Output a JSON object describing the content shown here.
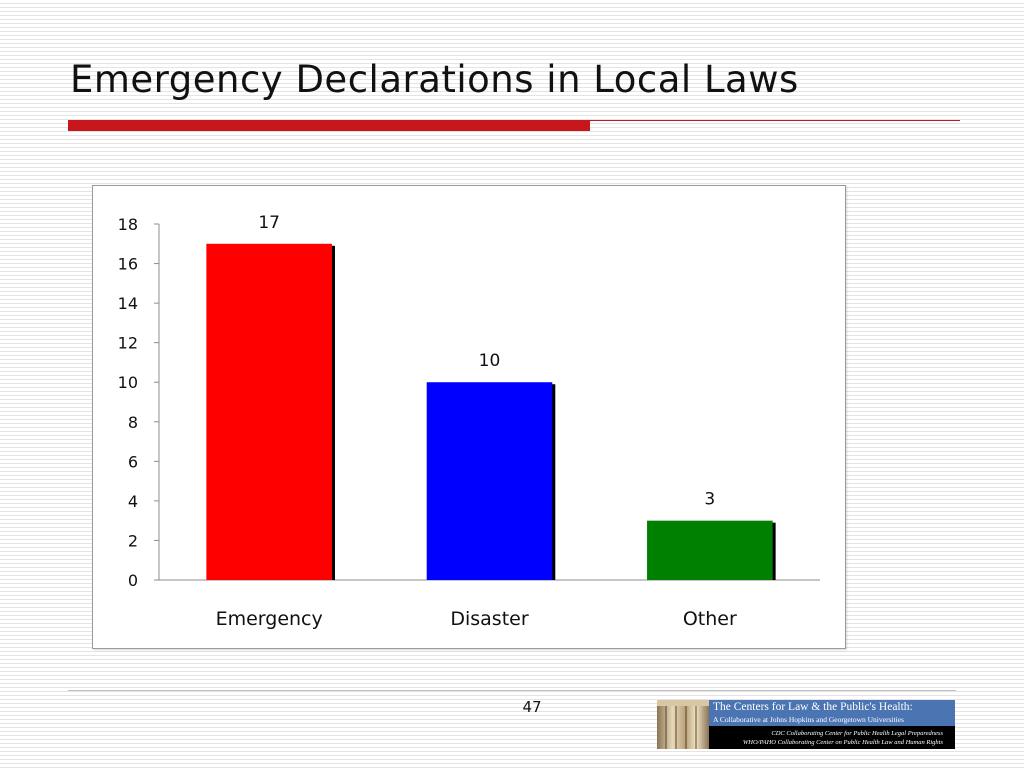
{
  "slide": {
    "title": "Emergency Declarations in Local Laws",
    "page_number": "47"
  },
  "logo": {
    "line1": "The Centers for Law & the Public's Health:",
    "line2": "A Collaborative at Johns Hopkins and Georgetown Universities",
    "line3": "CDC Collaborating Center for Public Health Legal Preparedness",
    "line4": "WHO/PAHO Collaborating Center on Public Health Law and Human Rights"
  },
  "chart_data": {
    "type": "bar",
    "title": "",
    "xlabel": "",
    "ylabel": "",
    "categories": [
      "Emergency",
      "Disaster",
      "Other"
    ],
    "values": [
      17,
      10,
      3
    ],
    "data_labels": [
      "17",
      "10",
      "3"
    ],
    "colors": [
      "#ff0000",
      "#0000ff",
      "#008000"
    ],
    "ylim": [
      0,
      18
    ],
    "yticks": [
      0,
      2,
      4,
      6,
      8,
      10,
      12,
      14,
      16,
      18
    ],
    "grid": false,
    "legend": "none"
  }
}
